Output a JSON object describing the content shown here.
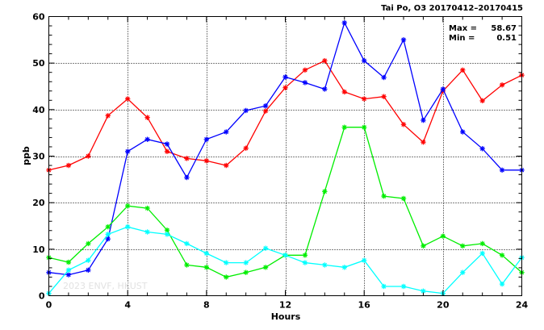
{
  "header": {
    "title": "Tai Po, O3 20170412–20170415"
  },
  "stats": {
    "max_label": "Max =",
    "max_value": "58.67",
    "min_label": "Min =",
    "min_value": "0.51"
  },
  "watermark": "2023 ENVF, HKUST",
  "chart_data": {
    "type": "line",
    "title": "Tai Po, O3 20170412–20170415",
    "xlabel": "Hours",
    "ylabel": "ppb",
    "xlim": [
      0,
      24
    ],
    "ylim": [
      0,
      60
    ],
    "xticks": [
      0,
      4,
      8,
      12,
      16,
      20,
      24
    ],
    "yticks": [
      0,
      10,
      20,
      30,
      40,
      50,
      60
    ],
    "grid": true,
    "marker": "asterisk",
    "x": [
      0,
      1,
      2,
      3,
      4,
      5,
      6,
      7,
      8,
      9,
      10,
      11,
      12,
      13,
      14,
      15,
      16,
      17,
      18,
      19,
      20,
      21,
      22,
      23,
      24
    ],
    "series": [
      {
        "color": "#ff0000",
        "values": [
          27,
          28,
          30,
          38.7,
          42.3,
          38.3,
          31,
          29.5,
          29,
          28,
          31.7,
          39.7,
          44.7,
          48.5,
          50.5,
          43.8,
          42.3,
          42.8,
          36.8,
          33,
          44,
          48.5,
          41.9,
          45.3,
          47.4
        ]
      },
      {
        "color": "#0000ff",
        "values": [
          5,
          4.5,
          5.5,
          12.2,
          31,
          33.6,
          32.6,
          25.4,
          33.6,
          35.2,
          39.8,
          40.8,
          47,
          45.8,
          44.4,
          58.67,
          50.5,
          46.9,
          55,
          37.7,
          44.4,
          35.2,
          31.6,
          27,
          27
        ]
      },
      {
        "color": "#00ee00",
        "values": [
          8.2,
          7.2,
          11.2,
          14.8,
          19.3,
          18.8,
          14.1,
          6.6,
          6.1,
          4,
          5,
          6.1,
          8.7,
          8.7,
          22.4,
          36.2,
          36.2,
          21.4,
          20.9,
          10.7,
          12.8,
          10.7,
          11.2,
          8.7,
          5
        ]
      },
      {
        "color": "#00ffff",
        "values": [
          0.51,
          5.5,
          7.6,
          13.2,
          14.8,
          13.7,
          13.2,
          11.2,
          9.1,
          7.1,
          7.1,
          10.2,
          8.7,
          7.1,
          6.6,
          6.1,
          7.6,
          2,
          2,
          1,
          0.51,
          5,
          9.1,
          2.5,
          8.2
        ]
      }
    ]
  }
}
